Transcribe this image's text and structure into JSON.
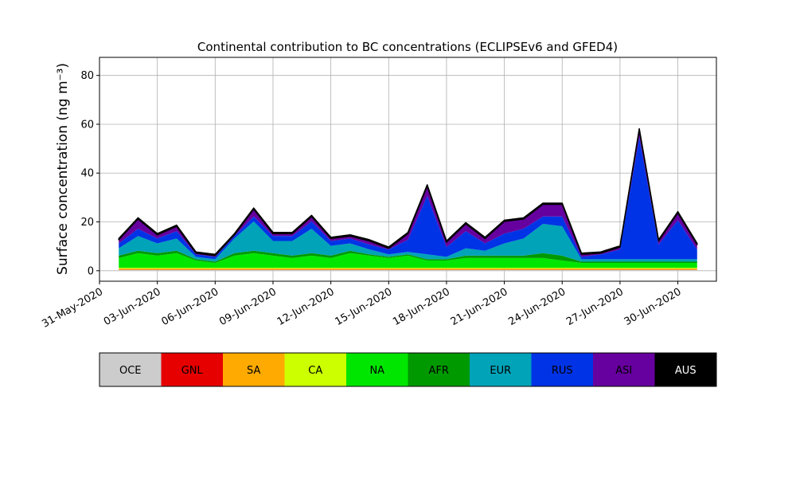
{
  "chart_data": {
    "type": "stacked_area",
    "title": "Continental contribution to BC concentrations (ECLIPSEv6 and GFED4)",
    "y_label": "Surface concentration (ng m⁻³)",
    "x": [
      "2020-06-01",
      "2020-06-02",
      "2020-06-03",
      "2020-06-04",
      "2020-06-05",
      "2020-06-06",
      "2020-06-07",
      "2020-06-08",
      "2020-06-09",
      "2020-06-10",
      "2020-06-11",
      "2020-06-12",
      "2020-06-13",
      "2020-06-14",
      "2020-06-15",
      "2020-06-16",
      "2020-06-17",
      "2020-06-18",
      "2020-06-19",
      "2020-06-20",
      "2020-06-21",
      "2020-06-22",
      "2020-06-23",
      "2020-06-24",
      "2020-06-25",
      "2020-06-26",
      "2020-06-27",
      "2020-06-28",
      "2020-06-29",
      "2020-06-30",
      "2020-07-01"
    ],
    "series": [
      {
        "name": "OCE",
        "color": "#cccccc",
        "values": [
          0.3,
          0.3,
          0.3,
          0.3,
          0.3,
          0.3,
          0.3,
          0.3,
          0.3,
          0.3,
          0.3,
          0.3,
          0.3,
          0.3,
          0.3,
          0.3,
          0.3,
          0.3,
          0.3,
          0.3,
          0.3,
          0.3,
          0.3,
          0.3,
          0.3,
          0.3,
          0.3,
          0.3,
          0.3,
          0.3,
          0.3
        ]
      },
      {
        "name": "GNL",
        "color": "#e60000",
        "values": [
          0.1,
          0.1,
          0.1,
          0.1,
          0.1,
          0.1,
          0.1,
          0.1,
          0.1,
          0.1,
          0.1,
          0.1,
          0.1,
          0.1,
          0.1,
          0.1,
          0.1,
          0.1,
          0.1,
          0.1,
          0.1,
          0.1,
          0.1,
          0.1,
          0.1,
          0.1,
          0.1,
          0.1,
          0.1,
          0.1,
          0.1
        ]
      },
      {
        "name": "SA",
        "color": "#ffaa00",
        "values": [
          0.5,
          0.5,
          0.5,
          0.5,
          0.5,
          0.5,
          0.5,
          0.5,
          0.5,
          0.5,
          0.5,
          0.5,
          0.5,
          0.5,
          0.5,
          0.5,
          0.5,
          0.5,
          0.5,
          0.5,
          0.5,
          0.5,
          0.5,
          0.5,
          0.5,
          0.5,
          0.5,
          0.5,
          0.5,
          0.5,
          0.5
        ]
      },
      {
        "name": "CA",
        "color": "#ccff00",
        "values": [
          0.3,
          0.3,
          0.3,
          0.3,
          0.3,
          0.3,
          0.3,
          0.3,
          0.3,
          0.3,
          0.3,
          0.3,
          0.3,
          0.3,
          0.3,
          0.3,
          0.3,
          0.3,
          0.3,
          0.3,
          0.3,
          0.3,
          0.3,
          0.3,
          0.3,
          0.3,
          0.3,
          0.3,
          0.3,
          0.3,
          0.3
        ]
      },
      {
        "name": "NA",
        "color": "#00e600",
        "values": [
          4,
          6,
          5,
          6,
          3,
          2,
          5,
          6,
          5,
          4,
          5,
          4,
          6,
          5,
          4,
          5,
          3,
          3,
          4,
          4,
          4,
          4,
          4,
          3,
          2,
          2,
          2,
          2,
          2,
          2,
          2
        ]
      },
      {
        "name": "AFR",
        "color": "#009900",
        "values": [
          1,
          1,
          1,
          1,
          0.5,
          0.5,
          1,
          1,
          1,
          1,
          1,
          1,
          1,
          0.5,
          0.5,
          0.5,
          0.5,
          0.5,
          1,
          1,
          1,
          1,
          2,
          2,
          0.5,
          0.5,
          0.5,
          0.5,
          0.5,
          0.5,
          0.5
        ]
      },
      {
        "name": "EUR",
        "color": "#00a3b8",
        "values": [
          3,
          6,
          4,
          5,
          1,
          1,
          6,
          12,
          5,
          6,
          10,
          4,
          3,
          2,
          1,
          1,
          2,
          1,
          3,
          2,
          5,
          7,
          12,
          12,
          1,
          1,
          1,
          1,
          1,
          1,
          1
        ]
      },
      {
        "name": "RUS",
        "color": "#0033e6",
        "values": [
          2,
          3,
          2,
          3,
          1,
          1,
          1,
          2,
          2,
          2,
          3,
          2,
          2,
          2,
          2,
          5,
          24,
          4,
          7,
          3,
          4,
          4,
          3,
          4,
          1,
          2,
          4,
          50,
          6,
          16,
          4
        ]
      },
      {
        "name": "ASI",
        "color": "#66009e",
        "values": [
          1.5,
          4,
          1.5,
          2,
          0.5,
          0.5,
          0.5,
          3,
          1,
          1,
          2,
          1,
          1,
          1.5,
          0.5,
          2.5,
          4,
          2,
          3,
          2,
          5,
          4,
          5,
          5,
          1,
          0.5,
          1,
          3,
          1.5,
          3,
          2
        ]
      },
      {
        "name": "AUS",
        "color": "#000000",
        "values": [
          0.5,
          0.5,
          0.5,
          0.5,
          0.5,
          0.5,
          0.5,
          0.5,
          0.5,
          0.5,
          0.5,
          0.5,
          0.5,
          0.5,
          0.5,
          0.5,
          0.5,
          0.5,
          0.5,
          0.5,
          0.5,
          0.5,
          0.5,
          0.5,
          0.5,
          0.5,
          0.5,
          0.5,
          0.5,
          0.5,
          0.5
        ]
      }
    ],
    "xlim": [
      "2020-05-31",
      "2020-07-02"
    ],
    "xticks": [
      {
        "value": "2020-05-31",
        "label": "31-May-2020"
      },
      {
        "value": "2020-06-03",
        "label": "03-Jun-2020"
      },
      {
        "value": "2020-06-06",
        "label": "06-Jun-2020"
      },
      {
        "value": "2020-06-09",
        "label": "09-Jun-2020"
      },
      {
        "value": "2020-06-12",
        "label": "12-Jun-2020"
      },
      {
        "value": "2020-06-15",
        "label": "15-Jun-2020"
      },
      {
        "value": "2020-06-18",
        "label": "18-Jun-2020"
      },
      {
        "value": "2020-06-21",
        "label": "21-Jun-2020"
      },
      {
        "value": "2020-06-24",
        "label": "24-Jun-2020"
      },
      {
        "value": "2020-06-27",
        "label": "27-Jun-2020"
      },
      {
        "value": "2020-06-30",
        "label": "30-Jun-2020"
      }
    ],
    "ylim": [
      -4.3,
      87.4
    ],
    "yticks": [
      0,
      20,
      40,
      60,
      80
    ],
    "grid": true
  }
}
